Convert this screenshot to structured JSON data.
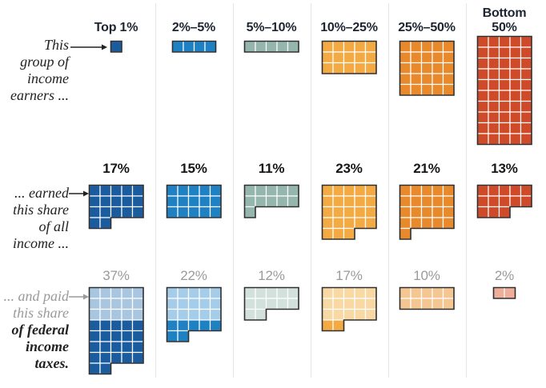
{
  "infographic": {
    "muted_color": "#9a9a9a",
    "dark_text_color": "#161616",
    "block_border_color": "#2e2e2e",
    "columns": [
      {
        "header": "Top 1%",
        "earners_units": 1,
        "income_pct": "17%",
        "income_units": 17,
        "tax_pct": "37%",
        "tax_units": 37,
        "tax_light_units": 15,
        "base_color": "#1b5c9f",
        "light_color": "#a9c6e1"
      },
      {
        "header": "2%–5%",
        "earners_units": 4,
        "income_pct": "15%",
        "income_units": 15,
        "tax_pct": "22%",
        "tax_units": 22,
        "tax_light_units": 15,
        "base_color": "#1e81c3",
        "light_color": "#a5cce8"
      },
      {
        "header": "5%–10%",
        "earners_units": 5,
        "income_pct": "11%",
        "income_units": 11,
        "tax_pct": "12%",
        "tax_units": 12,
        "tax_light_units": 12,
        "base_color": "#94b6ad",
        "light_color": "#d2e1db"
      },
      {
        "header": "10%–25%",
        "earners_units": 15,
        "income_pct": "23%",
        "income_units": 23,
        "tax_pct": "17%",
        "tax_units": 17,
        "tax_light_units": 15,
        "base_color": "#f3aa42",
        "light_color": "#f8d8a3"
      },
      {
        "header": "25%–50%",
        "earners_units": 25,
        "income_pct": "21%",
        "income_units": 21,
        "tax_pct": "10%",
        "tax_units": 10,
        "tax_light_units": 10,
        "base_color": "#e8892b",
        "light_color": "#f4c691"
      },
      {
        "header": "Bottom 50%",
        "earners_units": 50,
        "income_pct": "13%",
        "income_units": 13,
        "tax_pct": "2%",
        "tax_units": 2,
        "tax_light_units": 2,
        "base_color": "#cf4a28",
        "light_color": "#efae99"
      }
    ],
    "row_labels": {
      "earners": {
        "lines": [
          "This",
          "group of",
          "income",
          "earners ..."
        ],
        "muted_line_count": 0,
        "bold_from_line": -1
      },
      "income": {
        "lines": [
          "... earned",
          "this share",
          "of all",
          "income ..."
        ],
        "muted_line_count": 0,
        "bold_from_line": -1
      },
      "taxes": {
        "lines": [
          "... and paid",
          "this share",
          "of federal",
          "income",
          "taxes."
        ],
        "muted_line_count": 2,
        "bold_from_line": 2
      }
    }
  },
  "chart_data": {
    "type": "waffle",
    "title": "",
    "unit": "1 square = 1 percentage point",
    "categories": [
      "Top 1%",
      "2%–5%",
      "5%–10%",
      "10%–25%",
      "25%–50%",
      "Bottom 50%"
    ],
    "series": [
      {
        "name": "This group of income earners (share of all earners, %)",
        "values": [
          1,
          4,
          5,
          15,
          25,
          50
        ]
      },
      {
        "name": "... earned this share of all income (%)",
        "values": [
          17,
          15,
          11,
          23,
          21,
          13
        ]
      },
      {
        "name": "... and paid this share of federal income taxes (%)",
        "values": [
          37,
          22,
          12,
          17,
          10,
          2
        ]
      }
    ],
    "series_colors": [
      "#1b5c9f",
      "#1e81c3",
      "#94b6ad",
      "#f3aa42",
      "#e8892b",
      "#cf4a28"
    ],
    "tax_row_light_colors": [
      "#a9c6e1",
      "#a5cce8",
      "#d2e1db",
      "#f8d8a3",
      "#f4c691",
      "#efae99"
    ],
    "layout_hints": {
      "waffle_width_units": 5,
      "grid": false,
      "legend_position": "none",
      "tax_row_shading": "first 15 units (3 rows) of each tax block are tinted light; units beyond 15 use the full-strength column color",
      "income_value_style": "bold black",
      "tax_value_style": "gray"
    }
  }
}
